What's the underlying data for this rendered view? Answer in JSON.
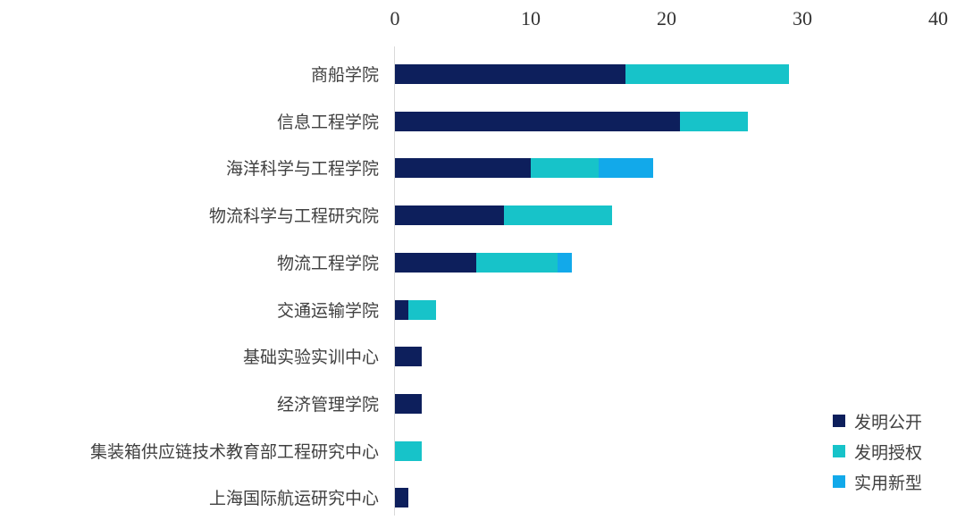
{
  "chart_data": {
    "type": "bar",
    "orientation": "horizontal",
    "stacked": true,
    "title": "",
    "xlabel": "",
    "ylabel": "",
    "xlim": [
      0,
      40
    ],
    "x_ticks": [
      "0",
      "10",
      "20",
      "30",
      "40"
    ],
    "x_axis_position": "top",
    "grid": false,
    "legend_position": "bottom-right",
    "categories": [
      "商船学院",
      "信息工程学院",
      "海洋科学与工程学院",
      "物流科学与工程研究院",
      "物流工程学院",
      "交通运输学院",
      "基础实验实训中心",
      "经济管理学院",
      "集装箱供应链技术教育部工程研究中心",
      "上海国际航运研究中心"
    ],
    "series": [
      {
        "name": "发明公开",
        "color": "#0d1f5c",
        "values": [
          17,
          21,
          10,
          8,
          6,
          1,
          2,
          2,
          0,
          1
        ]
      },
      {
        "name": "发明授权",
        "color": "#17c3c9",
        "values": [
          12,
          5,
          5,
          8,
          6,
          2,
          0,
          0,
          2,
          0
        ]
      },
      {
        "name": "实用新型",
        "color": "#12a9ea",
        "values": [
          0,
          0,
          4,
          0,
          1,
          0,
          0,
          0,
          0,
          0
        ]
      }
    ]
  },
  "legend": {
    "items": [
      "发明公开",
      "发明授权",
      "实用新型"
    ]
  }
}
